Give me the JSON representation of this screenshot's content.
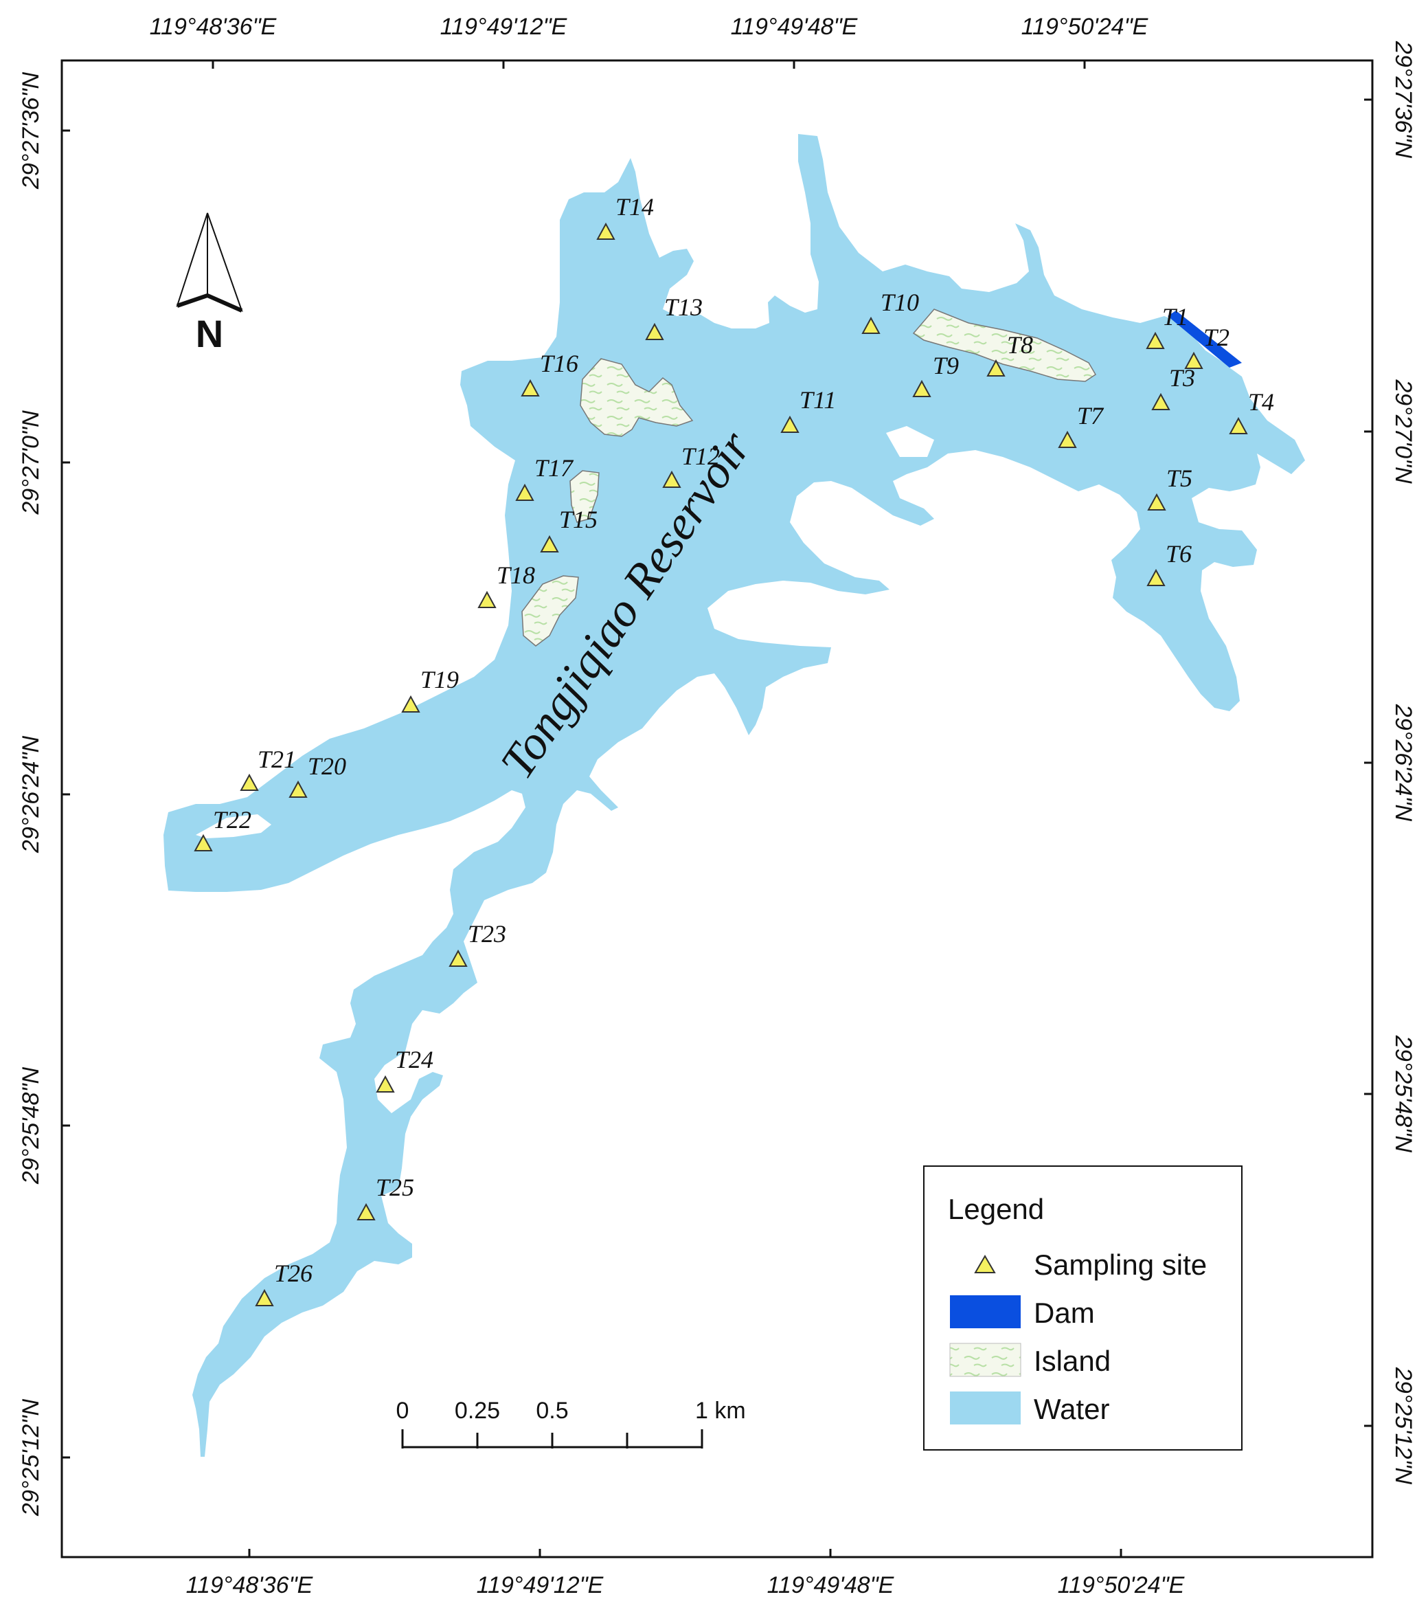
{
  "map": {
    "reservoir_name": "Tongjiqiao Reservoir",
    "north_label": "N",
    "top_longitudes": [
      "119°48'36\"E",
      "119°49'12\"E",
      "119°49'48\"E",
      "119°50'24\"E"
    ],
    "bottom_longitudes": [
      "119°48'36\"E",
      "119°49'12\"E",
      "119°49'48\"E",
      "119°50'24\"E"
    ],
    "left_latitudes": [
      "29°27'36\"N",
      "29°27'0\"N",
      "29°26'24\"N",
      "29°25'48\"N",
      "29°25'12\"N"
    ],
    "right_latitudes": [
      "29°27'36\"N",
      "29°27'0\"N",
      "29°26'24\"N",
      "29°25'48\"N",
      "29°25'12\"N"
    ],
    "sites": [
      "T1",
      "T2",
      "T3",
      "T4",
      "T5",
      "T6",
      "T7",
      "T8",
      "T9",
      "T10",
      "T11",
      "T12",
      "T13",
      "T14",
      "T15",
      "T16",
      "T17",
      "T18",
      "T19",
      "T20",
      "T21",
      "T22",
      "T23",
      "T24",
      "T25",
      "T26"
    ]
  },
  "legend": {
    "title": "Legend",
    "items": [
      {
        "label": "Sampling site",
        "symbol": "triangle-icon"
      },
      {
        "label": "Dam",
        "symbol": "dam-swatch"
      },
      {
        "label": "Island",
        "symbol": "island-swatch"
      },
      {
        "label": "Water",
        "symbol": "water-swatch"
      }
    ]
  },
  "scale_bar": {
    "labels": [
      "0",
      "0.25",
      "0.5",
      "1 km"
    ]
  },
  "colors": {
    "water": "#9DD8F0",
    "dam": "#0A4FE0",
    "island": "#F4F8EC",
    "site_marker": "#F5F060"
  }
}
